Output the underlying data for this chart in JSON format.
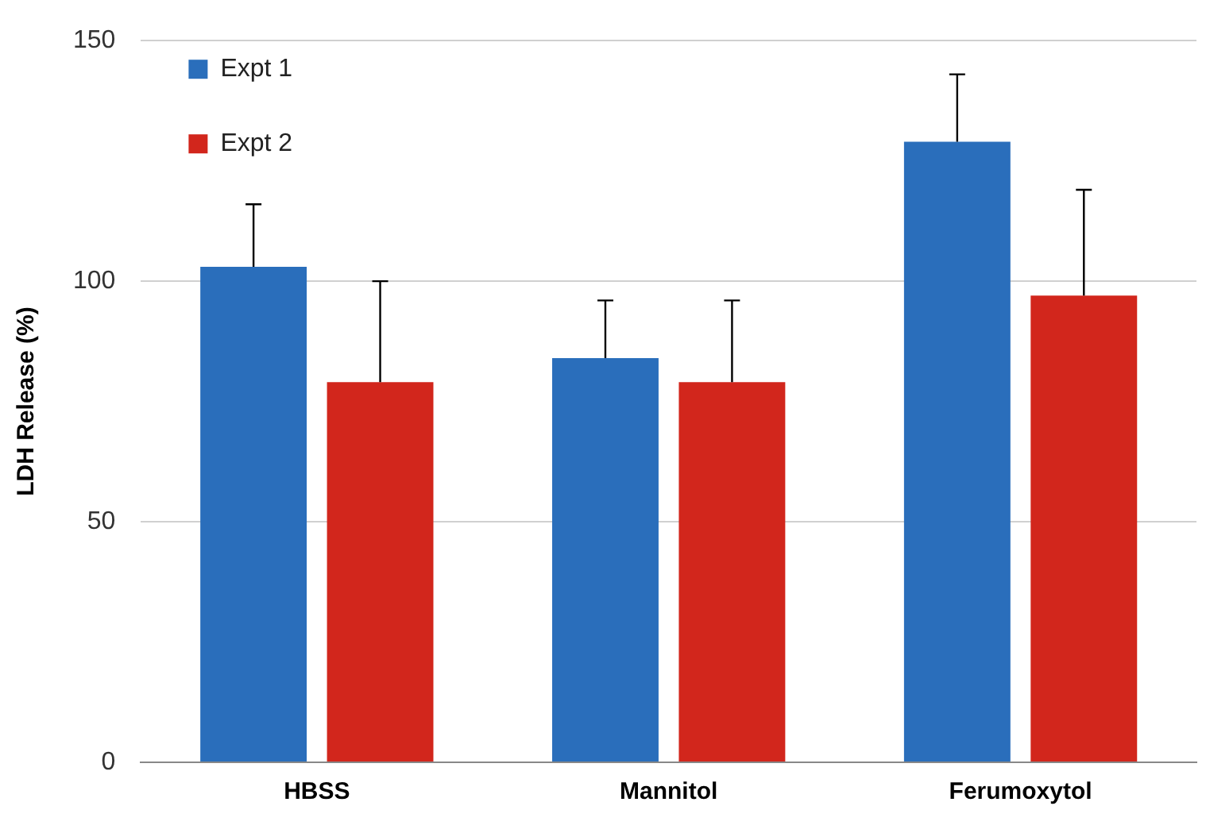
{
  "chart_data": {
    "type": "bar",
    "ylabel": "LDH Release (%)",
    "categories": [
      "HBSS",
      "Mannitol",
      "Ferumoxytol"
    ],
    "series": [
      {
        "name": "Expt 1",
        "color": "#2a6ebb",
        "values": [
          103,
          84,
          129
        ],
        "errors": [
          [
            103,
            116
          ],
          [
            84,
            96
          ],
          [
            129,
            143
          ]
        ]
      },
      {
        "name": "Expt 2",
        "color": "#d2261c",
        "values": [
          79,
          79,
          97
        ],
        "errors": [
          [
            79,
            100
          ],
          [
            79,
            96
          ],
          [
            97,
            119
          ]
        ]
      }
    ],
    "ylim": [
      0,
      150
    ],
    "yticks": [
      0,
      50,
      100,
      150
    ],
    "grid": "y",
    "legend": "top left"
  }
}
